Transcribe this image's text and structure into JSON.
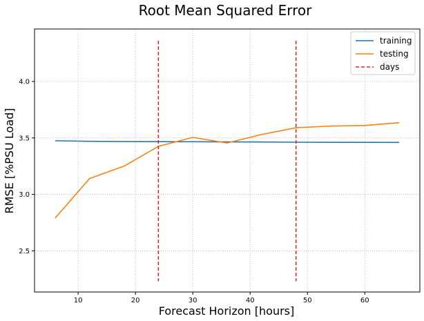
{
  "chart_data": {
    "type": "line",
    "title": "Root Mean Squared Error",
    "xlabel": "Forecast Horizon [hours]",
    "ylabel": "RMSE [%PSU Load]",
    "xlim": [
      2.4,
      69.6
    ],
    "ylim": [
      2.135,
      4.465
    ],
    "x_ticks": [
      10,
      20,
      30,
      40,
      50,
      60
    ],
    "y_ticks": [
      2.5,
      3.0,
      3.5,
      4.0
    ],
    "x_tick_labels": [
      "10",
      "20",
      "30",
      "40",
      "50",
      "60"
    ],
    "y_tick_labels": [
      "2.5",
      "3.0",
      "3.5",
      "4.0"
    ],
    "grid": true,
    "legend_position": "top-right",
    "series": [
      {
        "name": "training",
        "color": "#1f77b4",
        "style": "solid",
        "x": [
          6,
          12,
          18,
          24,
          30,
          36,
          42,
          48,
          54,
          60,
          66
        ],
        "y": [
          3.475,
          3.47,
          3.468,
          3.467,
          3.466,
          3.465,
          3.464,
          3.462,
          3.461,
          3.461,
          3.46
        ]
      },
      {
        "name": "testing",
        "color": "#ff7f0e",
        "style": "solid",
        "x": [
          6,
          12,
          18,
          24,
          30,
          36,
          42,
          48,
          54,
          60,
          66
        ],
        "y": [
          2.79,
          3.14,
          3.25,
          3.425,
          3.505,
          3.455,
          3.53,
          3.59,
          3.605,
          3.61,
          3.635
        ]
      }
    ],
    "vlines": {
      "name": "days",
      "color": "#d62728",
      "style": "dashed",
      "x": [
        24,
        48
      ],
      "y_range": [
        2.23,
        4.36
      ]
    }
  }
}
